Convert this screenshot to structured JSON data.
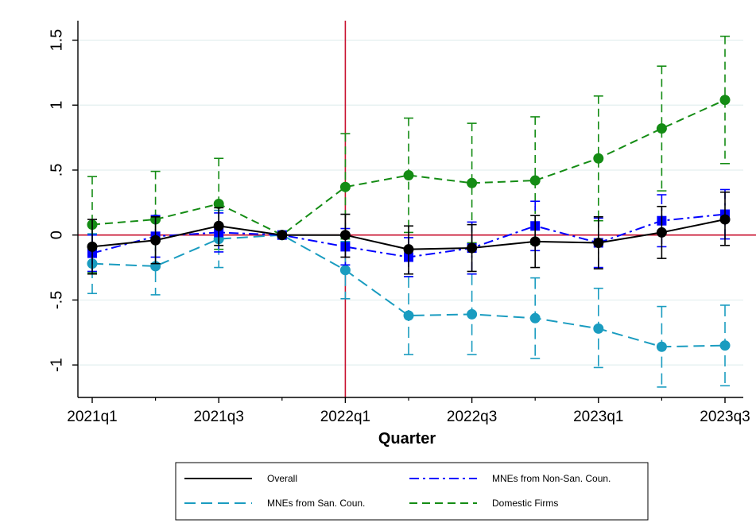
{
  "chart_data": {
    "type": "line",
    "xlabel": "Quarter",
    "ylabel": "",
    "xlim": [
      0,
      10
    ],
    "ylim": [
      -1.25,
      1.65
    ],
    "grid": true,
    "legend_placement": "bottom",
    "event_marker_x": 4,
    "zero_line": 0,
    "x_tick_labels": [
      {
        "x": 0,
        "label": "2021q1"
      },
      {
        "x": 2,
        "label": "2021q3"
      },
      {
        "x": 4,
        "label": "2022q1"
      },
      {
        "x": 6,
        "label": "2022q3"
      },
      {
        "x": 8,
        "label": "2023q1"
      },
      {
        "x": 10,
        "label": "2023q3"
      }
    ],
    "y_ticks": [
      {
        "v": 1.5,
        "label": "1.5"
      },
      {
        "v": 1,
        "label": "1"
      },
      {
        "v": 0.5,
        "label": ".5"
      },
      {
        "v": 0,
        "label": "0"
      },
      {
        "v": -0.5,
        "label": "-.5"
      },
      {
        "v": -1,
        "label": "-1"
      }
    ],
    "x": [
      0,
      1,
      2,
      3,
      4,
      5,
      6,
      7,
      8,
      9,
      10
    ],
    "series": [
      {
        "name": "Overall",
        "color": "#000000",
        "dash": "",
        "marker": "circle",
        "values": [
          -0.09,
          -0.04,
          0.07,
          0.0,
          0.0,
          -0.11,
          -0.1,
          -0.05,
          -0.06,
          0.02,
          0.12
        ],
        "ci_low": [
          -0.3,
          -0.22,
          -0.08,
          0.0,
          -0.17,
          -0.3,
          -0.28,
          -0.25,
          -0.26,
          -0.18,
          -0.08
        ],
        "ci_high": [
          0.12,
          0.14,
          0.21,
          0.0,
          0.16,
          0.07,
          0.08,
          0.15,
          0.14,
          0.22,
          0.33
        ]
      },
      {
        "name": "MNEs from Non-San. Coun.",
        "color": "#0000ff",
        "dash": "12,5,3,5",
        "marker": "square",
        "values": [
          -0.14,
          -0.01,
          0.02,
          0.0,
          -0.09,
          -0.17,
          -0.1,
          0.07,
          -0.06,
          0.11,
          0.16
        ],
        "ci_low": [
          -0.28,
          -0.17,
          -0.13,
          0.0,
          -0.23,
          -0.32,
          -0.3,
          -0.12,
          -0.25,
          -0.09,
          -0.03
        ],
        "ci_high": [
          0.0,
          0.15,
          0.17,
          0.0,
          0.05,
          -0.02,
          0.1,
          0.26,
          0.13,
          0.31,
          0.35
        ]
      },
      {
        "name": "MNEs from San. Coun.",
        "color": "#1a9cc0",
        "dash": "14,7",
        "marker": "circle",
        "values": [
          -0.22,
          -0.24,
          -0.03,
          0.0,
          -0.27,
          -0.62,
          -0.61,
          -0.64,
          -0.72,
          -0.86,
          -0.85
        ],
        "ci_low": [
          -0.45,
          -0.46,
          -0.25,
          0.0,
          -0.49,
          -0.92,
          -0.92,
          -0.95,
          -1.02,
          -1.17,
          -1.16
        ],
        "ci_high": [
          0.01,
          -0.02,
          0.19,
          0.0,
          -0.05,
          -0.32,
          -0.3,
          -0.33,
          -0.41,
          -0.55,
          -0.54
        ]
      },
      {
        "name": "Domestic Firms",
        "color": "#148c14",
        "dash": "10,6",
        "marker": "circle",
        "values": [
          0.08,
          0.12,
          0.24,
          0.0,
          0.37,
          0.46,
          0.4,
          0.42,
          0.59,
          0.82,
          1.04
        ],
        "ci_low": [
          -0.29,
          -0.25,
          -0.11,
          0.0,
          -0.03,
          0.02,
          -0.06,
          -0.07,
          0.11,
          0.34,
          0.55
        ],
        "ci_high": [
          0.45,
          0.49,
          0.59,
          0.0,
          0.78,
          0.9,
          0.86,
          0.91,
          1.07,
          1.3,
          1.53
        ]
      }
    ],
    "legend_items": [
      {
        "series": 0
      },
      {
        "series": 1
      },
      {
        "series": 2
      },
      {
        "series": 3
      }
    ]
  },
  "colors": {
    "grid": "#e3efef",
    "axis": "#000000",
    "zero_line": "#c8102e",
    "event_line": "#c8102e"
  }
}
